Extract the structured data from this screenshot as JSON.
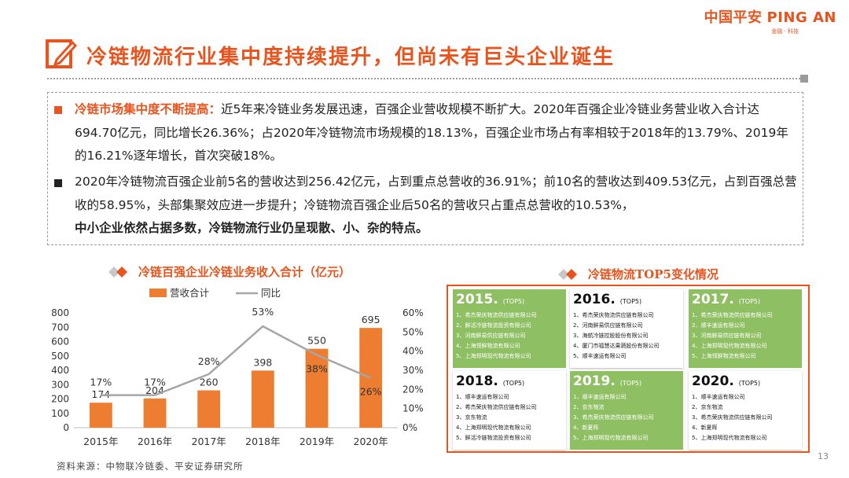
{
  "logo": {
    "cn": "中国平安",
    "en": "PING AN",
    "sub": "金融 · 科技"
  },
  "title": "冷链物流行业集中度持续提升，但尚未有巨头企业诞生",
  "para1": {
    "lead": "冷链市场集中度不断提高：",
    "body": "近5年来冷链业务发展迅速，百强企业营收规模不断扩大。2020年百强企业冷链业务营业收入合计达694.70亿元，同比增长26.36%；占2020年冷链物流市场规模的18.13%，百强企业市场占有率相较于2018年的13.79%、2019年的16.21%逐年增长，首次突破18%。"
  },
  "para2": {
    "body": "2020年冷链物流百强企业前5名的营收达到256.42亿元，占到重点总营收的36.91%；前10名的营收达到409.53亿元，占到百强总营收的58.95%，头部集聚效应进一步提升；冷链物流百强企业后50名的营收只占重点总营收的10.53%，",
    "bold": "中小企业依然占据多数，冷链物流行业仍呈现散、小、杂的特点。"
  },
  "chart_section_title": "冷链百强企业冷链业务收入合计（亿元）",
  "top5_section_title": "冷链物流TOP5变化情况",
  "chart_data": {
    "type": "bar",
    "categories": [
      "2015年",
      "2016年",
      "2017年",
      "2018年",
      "2019年",
      "2020年"
    ],
    "series": [
      {
        "name": "营收合计",
        "type": "bar",
        "axis": "left",
        "values": [
          174,
          204,
          260,
          398,
          550,
          695
        ],
        "labels": [
          "174",
          "204",
          "260",
          "398",
          "550",
          "695"
        ],
        "color": "#ed7d31"
      },
      {
        "name": "同比",
        "type": "line",
        "axis": "right",
        "values": [
          17,
          17,
          28,
          53,
          38,
          26
        ],
        "labels": [
          "17%",
          "17%",
          "28%",
          "53%",
          "38%",
          "26%"
        ],
        "color": "#a6a6a6"
      }
    ],
    "ylim": [
      0,
      800
    ],
    "yticks": [
      "0",
      "100",
      "200",
      "300",
      "400",
      "500",
      "600",
      "700",
      "800"
    ],
    "y2lim": [
      0,
      60
    ],
    "y2ticks": [
      "0%",
      "10%",
      "20%",
      "30%",
      "40%",
      "50%",
      "60%"
    ],
    "legend": "top"
  },
  "top5": [
    {
      "year": "2015.",
      "tag": "(TOP5)",
      "style": "green",
      "items": [
        "1、希杰荣庆物流供应链有限公司",
        "2、鲜活冷链物流投资有限公司",
        "3、河南鲜易供应链有限公司",
        "4、上海领鲜物流有限公司",
        "5、上海郑明现代物流有限公司"
      ]
    },
    {
      "year": "2016.",
      "tag": "(TOP5)",
      "style": "white",
      "items": [
        "1、希杰荣庆物流供应链有限公司",
        "2、河南鲜易供应链有限公司",
        "3、海航冷链控股股份有限公司",
        "4、厦门市福慧达果蔬股份有限公司",
        "5、顺丰速运有限公司"
      ]
    },
    {
      "year": "2017.",
      "tag": "(TOP5)",
      "style": "green",
      "items": [
        "1、希杰荣庆物流供应链有限公司",
        "2、顺丰速运有限公司",
        "3、河南鲜易供应链有限公司",
        "4、上海郑明现代物流有限公司",
        "5、上海领鲜物流有限公司"
      ]
    },
    {
      "year": "2018.",
      "tag": "(TOP5)",
      "style": "white",
      "items": [
        "1、顺丰速运有限公司",
        "2、希杰荣庆物流供应链有限公司",
        "3、京东物流",
        "4、上海郑明现代物流有限公司",
        "5、鲜活冷链物流投资有限公司"
      ]
    },
    {
      "year": "2019.",
      "tag": "(TOP5)",
      "style": "green",
      "items": [
        "1、顺丰速运有限公司",
        "2、京东物流",
        "3、希杰荣庆物流供应链有限公司",
        "4、新夏晖",
        "5、上海郑明现代物流有限公司"
      ]
    },
    {
      "year": "2020.",
      "tag": "(TOP5)",
      "style": "white",
      "items": [
        "1、顺丰速运有限公司",
        "2、京东物流",
        "3、希杰荣庆物流供应链有限公司",
        "4、新夏晖",
        "5、上海郑明现代物流有限公司"
      ]
    }
  ],
  "source": "资料来源：中物联冷链委、平安证券研究所",
  "page_number": "13",
  "colors": {
    "accent": "#e8541e",
    "bar": "#ed7d31",
    "line": "#a6a6a6",
    "green": "#8fbf63"
  }
}
